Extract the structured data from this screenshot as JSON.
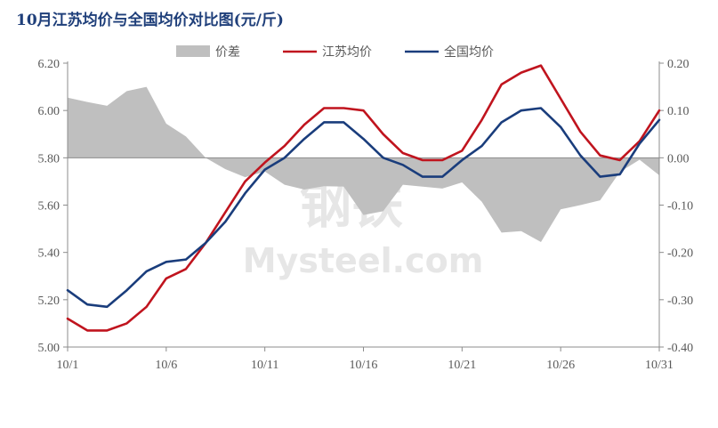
{
  "title": "10月江苏均价与全国均价对比图(元/斤)",
  "watermark": {
    "top": "钢铁",
    "bottom": "Mysteel.com"
  },
  "chart_data": {
    "type": "line",
    "title": "10月江苏均价与全国均价对比图(元/斤)",
    "x": [
      "10/1",
      "10/2",
      "10/3",
      "10/4",
      "10/5",
      "10/6",
      "10/7",
      "10/8",
      "10/9",
      "10/10",
      "10/11",
      "10/12",
      "10/13",
      "10/14",
      "10/15",
      "10/16",
      "10/17",
      "10/18",
      "10/19",
      "10/20",
      "10/21",
      "10/22",
      "10/23",
      "10/24",
      "10/25",
      "10/26",
      "10/27",
      "10/28",
      "10/29",
      "10/30",
      "10/31"
    ],
    "x_tick_labels": [
      "10/1",
      "10/6",
      "10/11",
      "10/16",
      "10/21",
      "10/26",
      "10/31"
    ],
    "y_left": {
      "range": [
        5.0,
        6.2
      ],
      "ticks": [
        "5.00",
        "5.20",
        "5.40",
        "5.60",
        "5.80",
        "6.00",
        "6.20"
      ]
    },
    "y_right": {
      "range": [
        -0.4,
        0.2
      ],
      "ticks": [
        "-0.40",
        "-0.30",
        "-0.20",
        "-0.10",
        "0.00",
        "0.10",
        "0.20"
      ]
    },
    "legend_position": "top",
    "grid": false,
    "series": [
      {
        "name": "价差",
        "type": "area",
        "axis": "right",
        "color": "#bfbfbf",
        "values": [
          0.127,
          0.118,
          0.11,
          0.141,
          0.15,
          0.072,
          0.045,
          0.0,
          -0.024,
          -0.041,
          -0.029,
          -0.057,
          -0.067,
          -0.06,
          -0.061,
          -0.121,
          -0.113,
          -0.057,
          -0.061,
          -0.065,
          -0.052,
          -0.093,
          -0.158,
          -0.155,
          -0.178,
          -0.109,
          -0.1,
          -0.09,
          -0.03,
          -0.004,
          -0.037
        ]
      },
      {
        "name": "江苏均价",
        "type": "line",
        "axis": "left",
        "color": "#c0141e",
        "values": [
          5.12,
          5.07,
          5.07,
          5.1,
          5.17,
          5.29,
          5.33,
          5.44,
          5.57,
          5.7,
          5.78,
          5.85,
          5.94,
          6.01,
          6.01,
          6.0,
          5.9,
          5.82,
          5.79,
          5.79,
          5.83,
          5.96,
          6.11,
          6.16,
          6.19,
          6.05,
          5.91,
          5.81,
          5.79,
          5.87,
          6.0
        ]
      },
      {
        "name": "全国均价",
        "type": "line",
        "axis": "left",
        "color": "#1a3d7c",
        "values": [
          5.24,
          5.18,
          5.17,
          5.24,
          5.32,
          5.36,
          5.37,
          5.44,
          5.53,
          5.65,
          5.75,
          5.8,
          5.88,
          5.95,
          5.95,
          5.88,
          5.8,
          5.77,
          5.72,
          5.72,
          5.79,
          5.85,
          5.95,
          6.0,
          6.01,
          5.93,
          5.81,
          5.72,
          5.73,
          5.86,
          5.96
        ]
      }
    ]
  }
}
